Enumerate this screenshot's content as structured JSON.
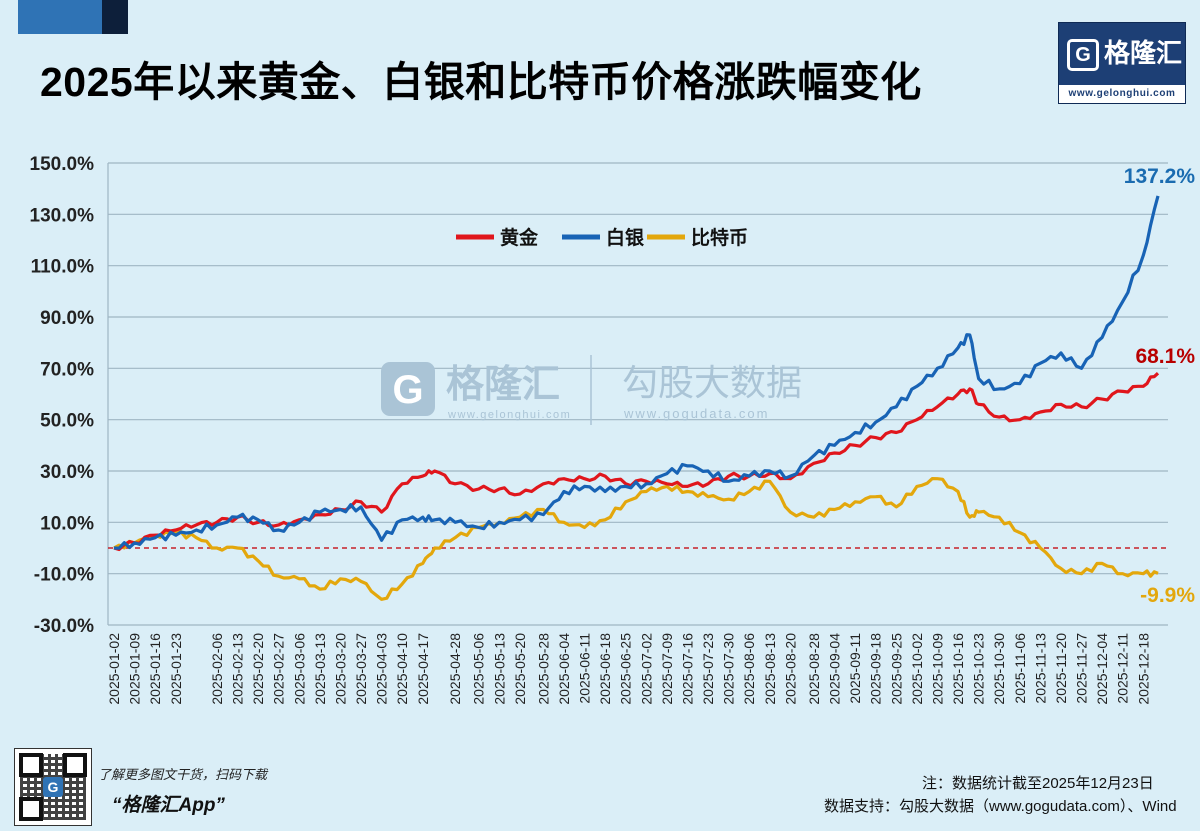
{
  "header": {
    "title": "2025年以来黄金、白银和比特币价格涨跌幅变化",
    "logo_glyph": "G",
    "logo_text": "格隆汇",
    "logo_url": "www.gelonghui.com"
  },
  "watermark": {
    "left_glyph": "G",
    "left_text": "格隆汇",
    "left_url": "www.gelonghui.com",
    "right_text": "勾股大数据",
    "right_url": "www.gogudata.com"
  },
  "footer": {
    "qr_glyph": "G",
    "promo": "了解更多图文干货，扫码下载",
    "app_name": "“格隆汇App”",
    "note": "注：数据统计截至2025年12月23日",
    "source": "数据支持：勾股大数据（www.gogudata.com）、Wind"
  },
  "colors": {
    "background": "#daeef7",
    "gold": "#e0161c",
    "silver": "#1863b5",
    "bitcoin": "#e3a70c",
    "end_gold": "#b80000",
    "end_silver": "#1a6bb0",
    "end_bitcoin": "#e3a70c",
    "zero_line": "#c8202a",
    "grid": "#9fb6c3"
  },
  "chart_data": {
    "type": "line",
    "title": "2025年以来黄金、白银和比特币价格涨跌幅变化",
    "xlabel": "",
    "ylabel": "",
    "ylim": [
      -30,
      150
    ],
    "yticks": [
      "150.0%",
      "130.0%",
      "110.0%",
      "90.0%",
      "70.0%",
      "50.0%",
      "30.0%",
      "10.0%",
      "-10.0%",
      "-30.0%"
    ],
    "grid": true,
    "legend_position": "top-center",
    "x_tick_labels": [
      "2025-01-02",
      "2025-01-09",
      "2025-01-16",
      "2025-01-23",
      "2025-02-06",
      "2025-02-13",
      "2025-02-20",
      "2025-02-27",
      "2025-03-06",
      "2025-03-13",
      "2025-03-20",
      "2025-03-27",
      "2025-04-03",
      "2025-04-10",
      "2025-04-17",
      "2025-04-28",
      "2025-05-06",
      "2025-05-13",
      "2025-05-20",
      "2025-05-28",
      "2025-06-04",
      "2025-06-11",
      "2025-06-18",
      "2025-06-25",
      "2025-07-02",
      "2025-07-09",
      "2025-07-16",
      "2025-07-23",
      "2025-07-30",
      "2025-08-06",
      "2025-08-13",
      "2025-08-20",
      "2025-08-28",
      "2025-09-04",
      "2025-09-11",
      "2025-09-18",
      "2025-09-25",
      "2025-10-02",
      "2025-10-09",
      "2025-10-16",
      "2025-10-23",
      "2025-10-30",
      "2025-11-06",
      "2025-11-13",
      "2025-11-20",
      "2025-11-27",
      "2025-12-04",
      "2025-12-11",
      "2025-12-18"
    ],
    "x": [
      "2025-01-02",
      "2025-01-09",
      "2025-01-16",
      "2025-01-23",
      "2025-01-30",
      "2025-02-06",
      "2025-02-13",
      "2025-02-20",
      "2025-02-27",
      "2025-03-06",
      "2025-03-13",
      "2025-03-20",
      "2025-03-27",
      "2025-04-03",
      "2025-04-10",
      "2025-04-17",
      "2025-04-21",
      "2025-04-28",
      "2025-05-06",
      "2025-05-13",
      "2025-05-20",
      "2025-05-28",
      "2025-06-04",
      "2025-06-11",
      "2025-06-18",
      "2025-06-25",
      "2025-07-02",
      "2025-07-09",
      "2025-07-16",
      "2025-07-23",
      "2025-07-30",
      "2025-08-06",
      "2025-08-13",
      "2025-08-20",
      "2025-08-28",
      "2025-09-04",
      "2025-09-11",
      "2025-09-18",
      "2025-09-25",
      "2025-10-02",
      "2025-10-09",
      "2025-10-16",
      "2025-10-20",
      "2025-10-23",
      "2025-10-30",
      "2025-11-06",
      "2025-11-13",
      "2025-11-20",
      "2025-11-27",
      "2025-12-04",
      "2025-12-11",
      "2025-12-18",
      "2025-12-23"
    ],
    "series": [
      {
        "name": "黄金",
        "values": [
          0,
          2,
          5,
          7,
          9,
          10,
          12,
          10,
          9,
          11,
          13,
          15,
          18,
          14,
          25,
          28,
          30,
          25,
          23,
          23,
          21,
          25,
          27,
          27,
          28,
          25,
          26,
          25,
          24,
          25,
          28,
          28,
          29,
          27,
          33,
          37,
          40,
          43,
          45,
          50,
          55,
          60,
          62,
          56,
          51,
          50,
          53,
          56,
          55,
          58,
          61,
          63,
          68.1
        ]
      },
      {
        "name": "白银",
        "values": [
          0,
          2,
          4,
          5,
          7,
          9,
          12,
          11,
          7,
          10,
          14,
          15,
          16,
          3,
          11,
          12,
          11,
          10,
          8,
          10,
          11,
          13,
          22,
          24,
          22,
          24,
          25,
          29,
          32,
          30,
          26,
          28,
          30,
          28,
          36,
          40,
          45,
          49,
          55,
          63,
          70,
          78,
          83,
          66,
          62,
          64,
          72,
          76,
          70,
          82,
          96,
          114,
          137.2
        ]
      },
      {
        "name": "比特币",
        "values": [
          0,
          2,
          5,
          6,
          4,
          0,
          0,
          -5,
          -11,
          -12,
          -16,
          -12,
          -13,
          -20,
          -14,
          -6,
          0,
          4,
          8,
          10,
          12,
          15,
          10,
          8,
          11,
          18,
          22,
          24,
          22,
          20,
          19,
          22,
          26,
          14,
          12,
          15,
          18,
          20,
          16,
          24,
          27,
          22,
          12,
          14,
          12,
          6,
          0,
          -8,
          -10,
          -6,
          -10,
          -10,
          -9.9
        ]
      }
    ],
    "end_labels": {
      "白银": "137.2%",
      "黄金": "68.1%",
      "比特币": "-9.9%"
    },
    "reference_line": {
      "y": 0,
      "style": "dashed"
    }
  }
}
